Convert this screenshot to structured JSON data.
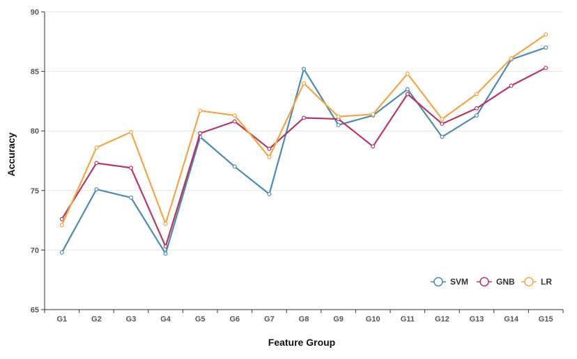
{
  "chart_data": {
    "type": "line",
    "title": "",
    "xlabel": "Feature Group",
    "ylabel": "Accuracy",
    "categories": [
      "G1",
      "G2",
      "G3",
      "G4",
      "G5",
      "G6",
      "G7",
      "G8",
      "G9",
      "G10",
      "G11",
      "G12",
      "G13",
      "G14",
      "G15"
    ],
    "ylim": [
      65,
      90
    ],
    "yticks": [
      65,
      70,
      75,
      80,
      85,
      90
    ],
    "grid": "horizontal",
    "legend_position": "bottom-right",
    "series": [
      {
        "name": "SVM",
        "color": "#4a8ab3",
        "values": [
          69.8,
          75.1,
          74.4,
          69.7,
          79.5,
          77.0,
          74.7,
          85.2,
          80.5,
          81.3,
          83.5,
          79.5,
          81.3,
          86.0,
          87.0
        ]
      },
      {
        "name": "GNB",
        "color": "#b8365a",
        "values": [
          72.6,
          77.3,
          76.9,
          70.3,
          79.8,
          80.8,
          78.5,
          81.1,
          81.0,
          78.7,
          83.1,
          80.6,
          81.9,
          83.8,
          85.3
        ]
      },
      {
        "name": "LR",
        "color": "#f4a445",
        "values": [
          72.1,
          78.6,
          79.9,
          72.2,
          81.7,
          81.3,
          77.8,
          84.0,
          81.2,
          81.4,
          84.8,
          81.0,
          83.1,
          86.1,
          88.1
        ]
      }
    ]
  }
}
